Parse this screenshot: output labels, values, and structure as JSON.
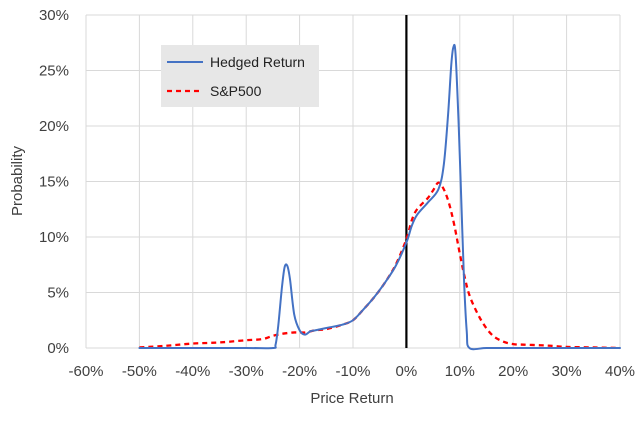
{
  "chart_data": {
    "type": "line",
    "title": "",
    "xlabel": "Price Return",
    "ylabel": "Probability",
    "xlim": [
      -60,
      40
    ],
    "ylim": [
      0,
      30
    ],
    "x_ticks": [
      -60,
      -50,
      -40,
      -30,
      -20,
      -10,
      0,
      10,
      20,
      30,
      40
    ],
    "x_tick_labels": [
      "-60%",
      "-50%",
      "-40%",
      "-30%",
      "-20%",
      "-10%",
      "0%",
      "10%",
      "20%",
      "30%",
      "40%"
    ],
    "y_ticks": [
      0,
      5,
      10,
      15,
      20,
      25,
      30
    ],
    "y_tick_labels": [
      "0%",
      "5%",
      "10%",
      "15%",
      "20%",
      "25%",
      "30%"
    ],
    "grid": true,
    "legend_position": "upper-left",
    "zero_line": true,
    "series": [
      {
        "name": "Hedged Return",
        "color": "#4472C4",
        "style": "solid",
        "points": [
          [
            -50,
            0
          ],
          [
            -40,
            0
          ],
          [
            -30,
            0
          ],
          [
            -25,
            0
          ],
          [
            -24.5,
            0.3
          ],
          [
            -24,
            2.0
          ],
          [
            -23.3,
            5.5
          ],
          [
            -22.8,
            7.3
          ],
          [
            -22.3,
            7.4
          ],
          [
            -21.8,
            6.2
          ],
          [
            -21,
            3.0
          ],
          [
            -20,
            1.6
          ],
          [
            -19,
            1.2
          ],
          [
            -18,
            1.5
          ],
          [
            -17,
            1.6
          ],
          [
            -15,
            1.8
          ],
          [
            -12,
            2.1
          ],
          [
            -10,
            2.5
          ],
          [
            -8,
            3.5
          ],
          [
            -6,
            4.6
          ],
          [
            -4,
            5.9
          ],
          [
            -2,
            7.4
          ],
          [
            0,
            9.5
          ],
          [
            1,
            11.0
          ],
          [
            2,
            12.0
          ],
          [
            4,
            13.1
          ],
          [
            6,
            14.3
          ],
          [
            7,
            16.5
          ],
          [
            7.8,
            21.0
          ],
          [
            8.4,
            25.5
          ],
          [
            8.8,
            27.1
          ],
          [
            9.2,
            26.5
          ],
          [
            9.8,
            20.0
          ],
          [
            10.3,
            13.0
          ],
          [
            10.8,
            6.0
          ],
          [
            11.3,
            1.5
          ],
          [
            11.8,
            0
          ],
          [
            15,
            0
          ],
          [
            20,
            0
          ],
          [
            30,
            0
          ],
          [
            40,
            0
          ]
        ]
      },
      {
        "name": "S&P500",
        "color": "#FF0000",
        "style": "dashed",
        "points": [
          [
            -50,
            0.05
          ],
          [
            -45,
            0.2
          ],
          [
            -40,
            0.4
          ],
          [
            -35,
            0.5
          ],
          [
            -30,
            0.7
          ],
          [
            -27,
            0.8
          ],
          [
            -25,
            1.1
          ],
          [
            -23,
            1.3
          ],
          [
            -21,
            1.4
          ],
          [
            -19,
            1.4
          ],
          [
            -17,
            1.6
          ],
          [
            -15,
            1.7
          ],
          [
            -12,
            2.1
          ],
          [
            -10,
            2.5
          ],
          [
            -8,
            3.5
          ],
          [
            -6,
            4.6
          ],
          [
            -4,
            5.9
          ],
          [
            -2,
            7.5
          ],
          [
            0,
            9.8
          ],
          [
            1,
            11.5
          ],
          [
            2,
            12.5
          ],
          [
            4,
            13.5
          ],
          [
            5,
            14.2
          ],
          [
            6,
            14.9
          ],
          [
            7,
            14.3
          ],
          [
            8,
            13.0
          ],
          [
            9,
            11.0
          ],
          [
            10,
            8.5
          ],
          [
            11,
            6.2
          ],
          [
            12,
            4.5
          ],
          [
            14,
            2.5
          ],
          [
            16,
            1.2
          ],
          [
            18,
            0.6
          ],
          [
            20,
            0.35
          ],
          [
            22,
            0.3
          ],
          [
            25,
            0.25
          ],
          [
            27,
            0.2
          ],
          [
            30,
            0.1
          ],
          [
            35,
            0.05
          ],
          [
            40,
            0
          ]
        ]
      }
    ]
  }
}
